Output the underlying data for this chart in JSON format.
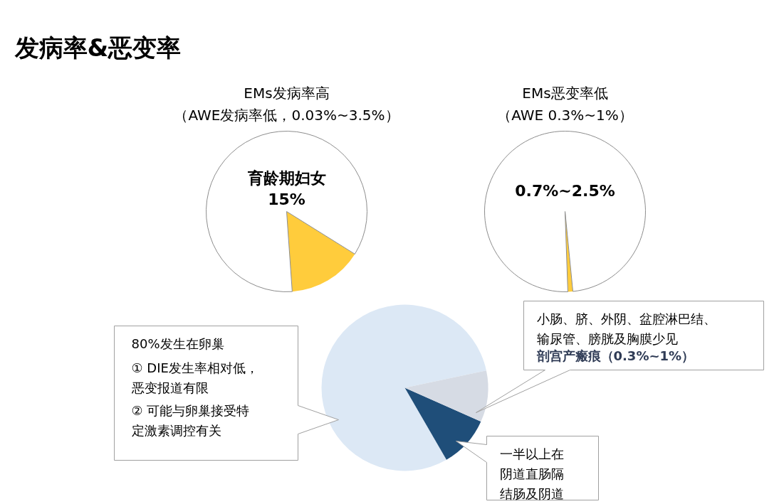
{
  "chart_data": [
    {
      "type": "pie",
      "title": "EMs发病率高",
      "subtitle": "（AWE发病率低，0.03%~3.5%）",
      "annotations": [
        "发病率&恶变率",
        "育龄期妇女",
        "15%"
      ],
      "categories": [
        null,
        null
      ],
      "values": [
        15,
        85
      ],
      "colors": [
        "#ffcc3c",
        "#ffffff"
      ]
    },
    {
      "type": "pie",
      "title": "EMs恶变率低",
      "subtitle": "（AWE 0.3%~1%）",
      "annotations": [
        "0.7%~2.5%"
      ],
      "categories": [
        null,
        null
      ],
      "values": [
        1,
        99
      ],
      "colors": [
        "#ffcc3c",
        "#ffffff"
      ]
    },
    {
      "type": "pie",
      "categories": [
        null,
        null,
        null
      ],
      "values": [
        80,
        10,
        10
      ],
      "colors": [
        "#dce8f5",
        "#1f4e79",
        "#d6dbe4"
      ],
      "annotations": [
        "80%发生在卵巢",
        "① DIE发生率相对低，恶变报道有限",
        "② 可能与卵巢接受特定激素调控有关",
        "小肠、脐、外阴、盆腔淋巴结、输尿管、膀胱及胸膜少见",
        "剖宫产瘢痕（0.3%~1%）",
        "一半以上在阴道直肠隔结肠及阴道"
      ]
    }
  ]
}
